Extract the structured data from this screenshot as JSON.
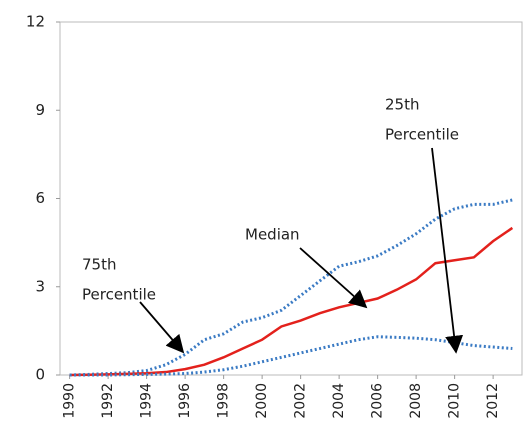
{
  "chart_data": {
    "type": "line",
    "x": [
      1990,
      1991,
      1992,
      1993,
      1994,
      1995,
      1996,
      1997,
      1998,
      1999,
      2000,
      2001,
      2002,
      2003,
      2004,
      2005,
      2006,
      2007,
      2008,
      2009,
      2010,
      2011,
      2012,
      2013
    ],
    "series": [
      {
        "name": "75th Percentile",
        "color": "#3b7bc4",
        "style": "dotted",
        "values": [
          0,
          0.02,
          0.05,
          0.08,
          0.15,
          0.35,
          0.7,
          1.2,
          1.4,
          1.8,
          1.95,
          2.2,
          2.7,
          3.2,
          3.7,
          3.85,
          4.05,
          4.4,
          4.8,
          5.3,
          5.65,
          5.8,
          5.8,
          5.95
        ]
      },
      {
        "name": "Median",
        "color": "#e3211c",
        "style": "solid",
        "values": [
          0,
          0.01,
          0.02,
          0.04,
          0.06,
          0.1,
          0.2,
          0.35,
          0.6,
          0.9,
          1.2,
          1.65,
          1.85,
          2.1,
          2.3,
          2.45,
          2.6,
          2.9,
          3.25,
          3.8,
          3.9,
          4.0,
          4.55,
          5.0
        ]
      },
      {
        "name": "25th Percentile",
        "color": "#3b7bc4",
        "style": "dotted",
        "values": [
          0,
          0,
          0,
          0.01,
          0.02,
          0.03,
          0.05,
          0.1,
          0.18,
          0.3,
          0.45,
          0.6,
          0.75,
          0.9,
          1.05,
          1.2,
          1.3,
          1.28,
          1.25,
          1.2,
          1.1,
          1.0,
          0.95,
          0.9
        ]
      }
    ],
    "annotations": [
      {
        "lines": [
          "75th",
          "Percentile"
        ]
      },
      {
        "lines": [
          "Median"
        ]
      },
      {
        "lines": [
          "25th",
          "Percentile"
        ]
      }
    ],
    "xlim": [
      1989.5,
      2013.5
    ],
    "xticks": [
      1990,
      1992,
      1994,
      1996,
      1998,
      2000,
      2002,
      2004,
      2006,
      2008,
      2010,
      2012
    ],
    "ylim": [
      0,
      12
    ],
    "yticks": [
      0,
      3,
      6,
      9,
      12
    ],
    "grid": false
  }
}
